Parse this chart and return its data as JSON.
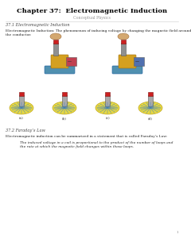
{
  "title": "Chapter 37:  Electromagnetic Induction",
  "subtitle": "Conceptual Physics",
  "section1_title": "37.1 Electromagnetic Induction",
  "section1_body": "Electromagnetic Induction: The phenomenon of inducing voltage by changing the magnetic field around\nthe conductor.",
  "section2_title": "37.2 Faraday’s Law",
  "section2_body": "Electromagnetic induction can be summarized in a statement that is called Faraday’s Law:",
  "section2_quote": "The induced voltage in a coil is proportional to the product of the number of loops and\nthe rate at which the magnetic field changes within those loops.",
  "bg_color": "#ffffff",
  "title_color": "#000000",
  "subtitle_color": "#999999",
  "text_color": "#222222",
  "section_title_color": "#444444",
  "body_fontsize": 3.2,
  "title_fontsize": 6.0,
  "subtitle_fontsize": 3.4,
  "section_title_fontsize": 3.6,
  "page_number": "1"
}
